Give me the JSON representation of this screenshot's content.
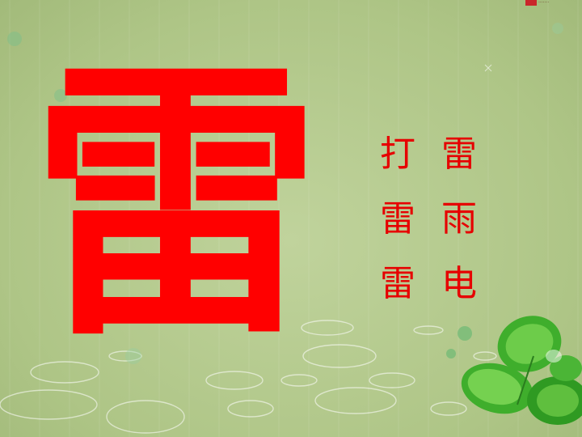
{
  "slide": {
    "big_character": "雷",
    "words": [
      "打雷",
      "雷雨",
      "雷电"
    ],
    "logo_text": "·······"
  },
  "colors": {
    "background": "#b6c98f",
    "character_red": "#ff0000",
    "word_red": "#e60000",
    "leaf_green": "#3fae2c"
  },
  "icons": [
    "clover-leaf-icon",
    "ripple-circle-icon",
    "sparkle-icon"
  ]
}
